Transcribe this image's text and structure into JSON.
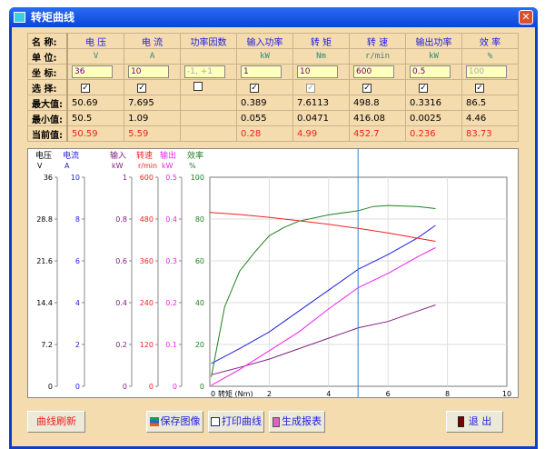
{
  "window": {
    "title": "转矩曲线",
    "close": "✕"
  },
  "table": {
    "row_labels": {
      "name": "名  称:",
      "unit": "单  位:",
      "scale": "坐  标:",
      "select": "选  择:",
      "max": "最大值:",
      "min": "最小值:",
      "current": "当前值:"
    },
    "columns": [
      {
        "name": "电  压",
        "unit": "V",
        "scale": "36",
        "checked": true,
        "max": "50.69",
        "min": "50.5",
        "current": "50.59"
      },
      {
        "name": "电  流",
        "unit": "A",
        "scale": "10",
        "checked": true,
        "max": "7.695",
        "min": "1.09",
        "current": "5.59"
      },
      {
        "name": "功率因数",
        "unit": "",
        "scale": "-1, +1",
        "scale_disabled": true,
        "checked": false,
        "max": "",
        "min": "",
        "current": ""
      },
      {
        "name": "输入功率",
        "unit": "kW",
        "scale": "1",
        "checked": true,
        "max": "0.389",
        "min": "0.055",
        "current": "0.28"
      },
      {
        "name": "转  矩",
        "unit": "Nm",
        "scale": "10",
        "checked": true,
        "check_disabled": true,
        "max": "7.6113",
        "min": "0.0471",
        "current": "4.99"
      },
      {
        "name": "转  速",
        "unit": "r/min",
        "scale": "600",
        "checked": true,
        "max": "498.8",
        "min": "416.08",
        "current": "452.7"
      },
      {
        "name": "输出功率",
        "unit": "kW",
        "scale": "0.5",
        "checked": true,
        "max": "0.3316",
        "min": "0.0025",
        "current": "0.236"
      },
      {
        "name": "效  率",
        "unit": "%",
        "scale": "100",
        "scale_disabled": true,
        "checked": true,
        "max": "86.5",
        "min": "4.46",
        "current": "83.73"
      }
    ]
  },
  "chart_data": {
    "type": "line",
    "xlabel": "转矩 (Nm)",
    "xlim": [
      0,
      10
    ],
    "xticks": [
      0,
      2,
      4,
      6,
      8,
      10
    ],
    "cursor_x": 4.99,
    "axes": [
      {
        "title": "电压",
        "unit": "V",
        "max": 36,
        "ticks": [
          "36",
          "28.8",
          "21.6",
          "14.4",
          "7.2",
          "0"
        ],
        "color": "#000000"
      },
      {
        "title": "电流",
        "unit": "A",
        "max": 10,
        "ticks": [
          "10",
          "8",
          "6",
          "4",
          "2",
          "0"
        ],
        "color": "#2020e0"
      },
      {
        "title": "输入",
        "unit": "kW",
        "max": 1,
        "ticks": [
          "1",
          "0.8",
          "0.6",
          "0.4",
          "0.2",
          "0"
        ],
        "color": "#802080"
      },
      {
        "title": "转速",
        "unit": "r/min",
        "max": 600,
        "ticks": [
          "600",
          "480",
          "360",
          "240",
          "120",
          "0"
        ],
        "color": "#f02020"
      },
      {
        "title": "输出",
        "unit": "kW",
        "max": 0.5,
        "ticks": [
          "0.5",
          "0.4",
          "0.3",
          "0.2",
          "0.1",
          "0"
        ],
        "color": "#f020f0"
      },
      {
        "title": "效率",
        "unit": "%",
        "max": 100,
        "ticks": [
          "100",
          "80",
          "60",
          "40",
          "20",
          "0"
        ],
        "color": "#208020"
      }
    ],
    "series": [
      {
        "axis": 1,
        "color": "#2020e0",
        "points": [
          [
            0.05,
            1.09
          ],
          [
            1,
            1.8
          ],
          [
            2,
            2.6
          ],
          [
            3,
            3.6
          ],
          [
            4,
            4.6
          ],
          [
            5,
            5.6
          ],
          [
            6,
            6.3
          ],
          [
            7,
            7.1
          ],
          [
            7.6,
            7.7
          ]
        ]
      },
      {
        "axis": 2,
        "color": "#802080",
        "points": [
          [
            0.05,
            0.055
          ],
          [
            1,
            0.09
          ],
          [
            2,
            0.13
          ],
          [
            3,
            0.18
          ],
          [
            4,
            0.23
          ],
          [
            5,
            0.28
          ],
          [
            6,
            0.31
          ],
          [
            7,
            0.36
          ],
          [
            7.6,
            0.389
          ]
        ]
      },
      {
        "axis": 3,
        "color": "#f02020",
        "points": [
          [
            0,
            498.8
          ],
          [
            1,
            493
          ],
          [
            2,
            485
          ],
          [
            3,
            475
          ],
          [
            4,
            465
          ],
          [
            5,
            453
          ],
          [
            6,
            440
          ],
          [
            7,
            425
          ],
          [
            7.6,
            416
          ]
        ]
      },
      {
        "axis": 4,
        "color": "#f020f0",
        "points": [
          [
            0.05,
            0.0025
          ],
          [
            1,
            0.04
          ],
          [
            2,
            0.085
          ],
          [
            3,
            0.13
          ],
          [
            4,
            0.185
          ],
          [
            5,
            0.236
          ],
          [
            6,
            0.27
          ],
          [
            7,
            0.31
          ],
          [
            7.6,
            0.3316
          ]
        ]
      },
      {
        "axis": 5,
        "color": "#208020",
        "points": [
          [
            0.05,
            4.5
          ],
          [
            0.5,
            38
          ],
          [
            1,
            55
          ],
          [
            1.5,
            64
          ],
          [
            2,
            72
          ],
          [
            2.5,
            76
          ],
          [
            3,
            79
          ],
          [
            4,
            82
          ],
          [
            5,
            84
          ],
          [
            5.5,
            86
          ],
          [
            6,
            86.5
          ],
          [
            7,
            86
          ],
          [
            7.6,
            85
          ]
        ]
      }
    ]
  },
  "buttons": {
    "refresh": "曲线刷新",
    "save": "保存图像",
    "print": "打印曲线",
    "report": "生成报表",
    "exit": "退  出"
  }
}
